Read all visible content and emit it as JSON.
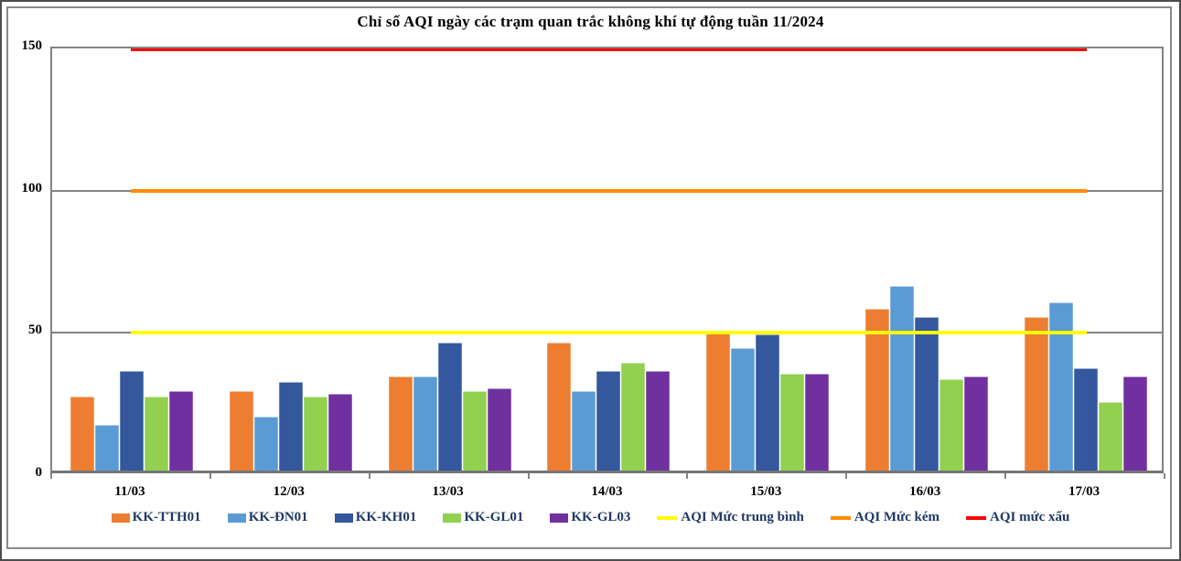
{
  "title": "Chỉ số AQI ngày các trạm quan trắc không khí tự động tuần 11/2024",
  "chart_data": {
    "type": "bar",
    "title": "Chỉ số AQI ngày các trạm quan trắc không khí tự động tuần 11/2024",
    "categories": [
      "11/03",
      "12/03",
      "13/03",
      "14/03",
      "15/03",
      "16/03",
      "17/03"
    ],
    "series": [
      {
        "name": "KK-TTH01",
        "color": "#ED7D31",
        "values": [
          26,
          28,
          33,
          45,
          49,
          57,
          54
        ]
      },
      {
        "name": "KK-ĐN01",
        "color": "#5B9BD5",
        "values": [
          16,
          19,
          33,
          28,
          43,
          65,
          59
        ]
      },
      {
        "name": "KK-KH01",
        "color": "#34579E",
        "values": [
          35,
          31,
          45,
          35,
          48,
          54,
          36
        ]
      },
      {
        "name": "KK-GL01",
        "color": "#92D050",
        "values": [
          26,
          26,
          28,
          38,
          34,
          32,
          24
        ]
      },
      {
        "name": "KK-GL03",
        "color": "#7030A0",
        "values": [
          28,
          27,
          29,
          35,
          34,
          33,
          33
        ]
      }
    ],
    "ref_lines": [
      {
        "name": "AQI Mức trung bình",
        "value": 50,
        "color": "#FFFF00",
        "thickness": 4
      },
      {
        "name": "AQI Mức kém",
        "value": 100,
        "color": "#FF8C00",
        "thickness": 4
      },
      {
        "name": "AQI mức xấu",
        "value": 150,
        "color": "#FF0000",
        "thickness": 3
      }
    ],
    "yticks": [
      0,
      50,
      100,
      150
    ],
    "ylim": [
      0,
      150
    ],
    "grid": true,
    "legend_position": "bottom",
    "gridline_color": "#848484"
  }
}
